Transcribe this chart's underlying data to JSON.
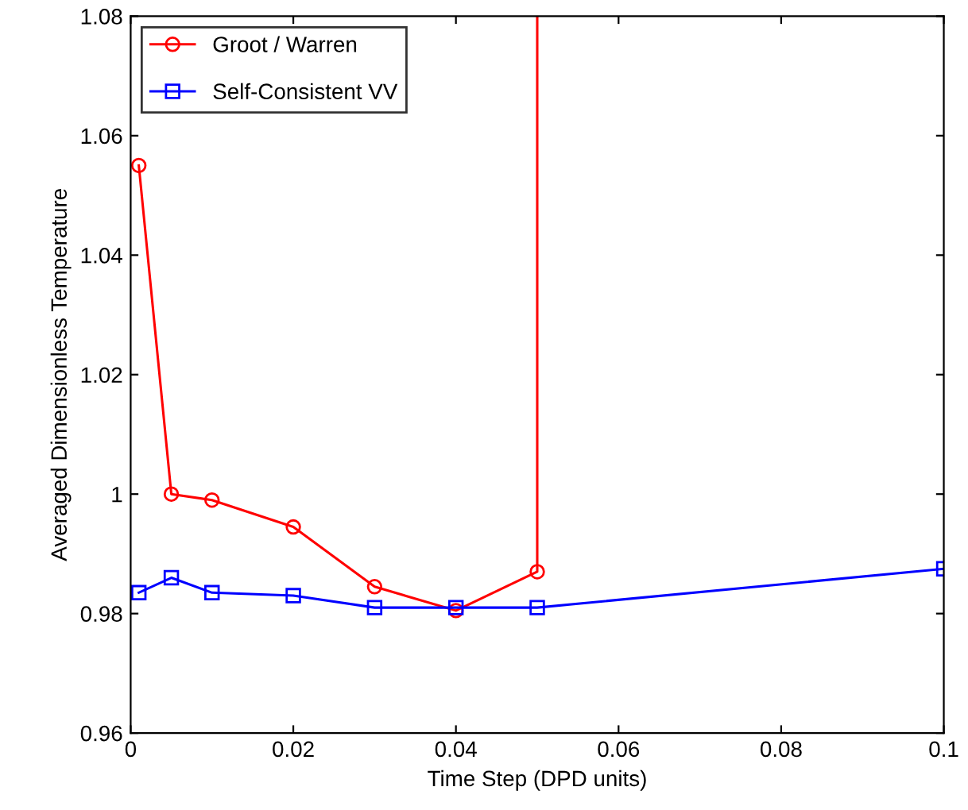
{
  "chart_data": {
    "type": "line",
    "xlabel": "Time Step (DPD units)",
    "ylabel": "Averaged Dimensionless Temperature",
    "xlim": [
      0,
      0.1
    ],
    "ylim": [
      0.96,
      1.08
    ],
    "xticks": [
      0,
      0.02,
      0.04,
      0.06,
      0.08,
      0.1
    ],
    "yticks": [
      0.96,
      0.98,
      1,
      1.02,
      1.04,
      1.06,
      1.08
    ],
    "grid": false,
    "legend": "top left",
    "line_style": "solid",
    "series": [
      {
        "name": "Groot / Warren",
        "color": "#ff0000",
        "marker": "circle",
        "x": [
          0.001,
          0.005,
          0.01,
          0.02,
          0.03,
          0.04,
          0.05,
          0.05
        ],
        "values": [
          1.055,
          1.0,
          0.999,
          0.9945,
          0.9845,
          0.9805,
          0.987,
          1.08
        ]
      },
      {
        "name": "Self-Consistent VV",
        "color": "#0000ff",
        "marker": "square",
        "x": [
          0.001,
          0.005,
          0.01,
          0.02,
          0.03,
          0.04,
          0.05,
          0.1
        ],
        "values": [
          0.9835,
          0.986,
          0.9835,
          0.983,
          0.981,
          0.981,
          0.981,
          0.9875
        ]
      }
    ]
  }
}
